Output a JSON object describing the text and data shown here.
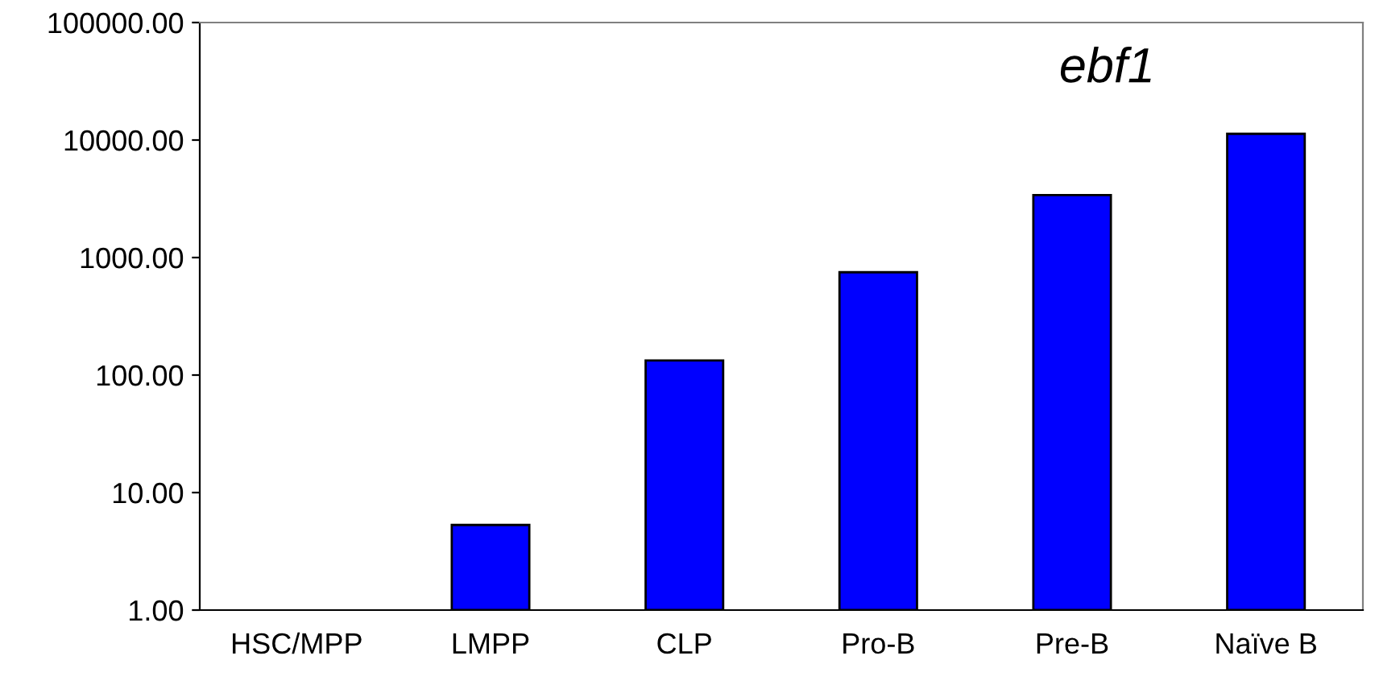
{
  "chart_data": {
    "type": "bar",
    "title": "ebf1",
    "categories": [
      "HSC/MPP",
      "LMPP",
      "CLP",
      "Pro-B",
      "Pre-B",
      "Naïve B"
    ],
    "values": [
      null,
      5.3,
      133,
      750,
      3400,
      11300
    ],
    "color": "#0000ff",
    "log": true,
    "ylim": [
      1,
      100000
    ],
    "yticks": [
      {
        "value": 1,
        "label": "1.00"
      },
      {
        "value": 10,
        "label": "10.00"
      },
      {
        "value": 100,
        "label": "100.00"
      },
      {
        "value": 1000,
        "label": "1000.00"
      },
      {
        "value": 10000,
        "label": "10000.00"
      },
      {
        "value": 100000,
        "label": "100000.00"
      }
    ],
    "grid": false,
    "legend": false
  }
}
